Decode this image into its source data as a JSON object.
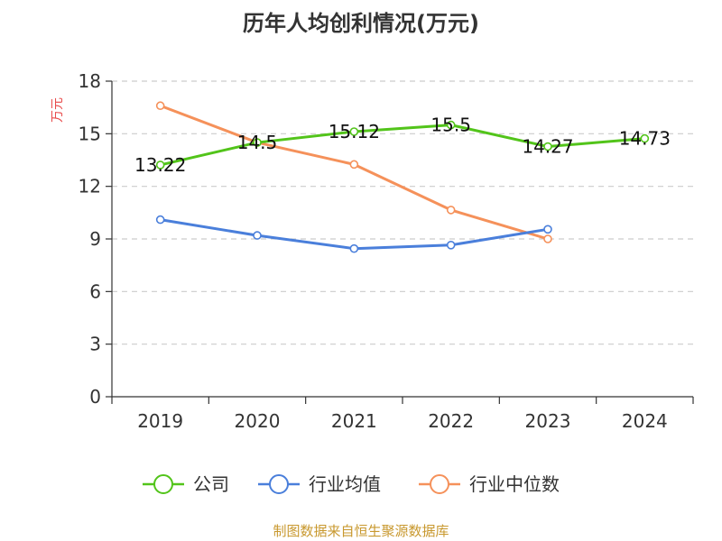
{
  "chart_data": {
    "type": "line",
    "title": "历年人均创利情况(万元)",
    "xlabel": "",
    "ylabel": "万元",
    "categories": [
      "2019",
      "2020",
      "2021",
      "2022",
      "2023",
      "2024"
    ],
    "ylim": [
      0,
      18
    ],
    "yticks": [
      0,
      3,
      6,
      9,
      12,
      15,
      18
    ],
    "grid": true,
    "legend_position": "bottom",
    "series": [
      {
        "name": "公司",
        "color": "#52c41a",
        "values": [
          13.22,
          14.5,
          15.12,
          15.5,
          14.27,
          14.73
        ],
        "labels": [
          "13.22",
          "14.5",
          "15.12",
          "15.5",
          "14.27",
          "14.73"
        ]
      },
      {
        "name": "行业均值",
        "color": "#4a7fdb",
        "values": [
          10.1,
          9.2,
          8.45,
          8.65,
          9.55,
          null
        ]
      },
      {
        "name": "行业中位数",
        "color": "#f5915a",
        "values": [
          16.6,
          14.5,
          13.25,
          10.65,
          9.0,
          null
        ]
      }
    ],
    "source": "制图数据来自恒生聚源数据库",
    "ylabel_color": "#e84a4a",
    "source_color": "#c8982e"
  }
}
